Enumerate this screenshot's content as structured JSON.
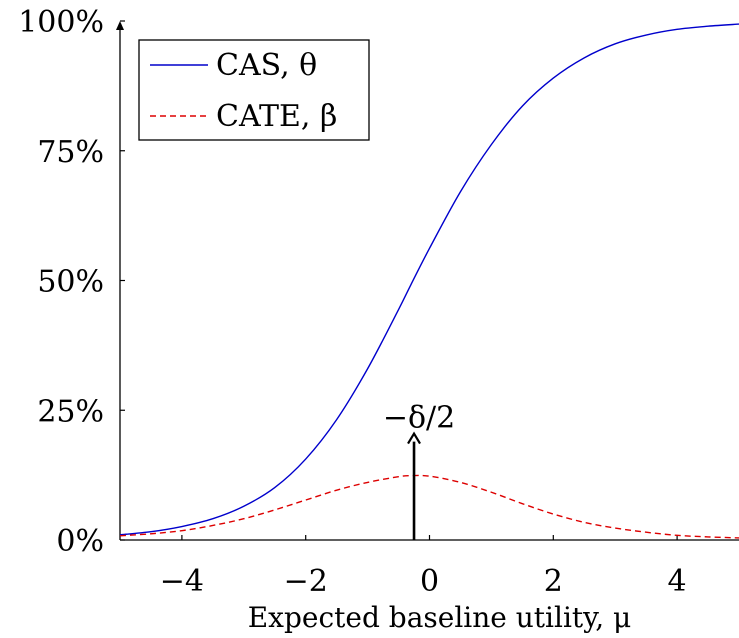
{
  "chart_data": {
    "type": "line",
    "xlabel": "Expected baseline utility, μ",
    "ylabel": "",
    "xlim": [
      -5,
      5
    ],
    "ylim": [
      0,
      100
    ],
    "x_ticks": [
      {
        "value": -4,
        "label": "−4"
      },
      {
        "value": -2,
        "label": "−2"
      },
      {
        "value": 0,
        "label": "0"
      },
      {
        "value": 2,
        "label": "2"
      },
      {
        "value": 4,
        "label": "4"
      }
    ],
    "y_ticks": [
      {
        "value": 0,
        "label": "0%"
      },
      {
        "value": 25,
        "label": "25%"
      },
      {
        "value": 50,
        "label": "50%"
      },
      {
        "value": 75,
        "label": "75%"
      },
      {
        "value": 100,
        "label": "100%"
      }
    ],
    "grid": false,
    "legend_position": "top-left",
    "series": [
      {
        "name": "CAS, θ",
        "color": "#0000cc",
        "style": "solid",
        "x": [
          -5,
          -4.5,
          -4,
          -3.5,
          -3,
          -2.5,
          -2,
          -1.5,
          -1,
          -0.5,
          -0.3,
          0,
          0.5,
          1,
          1.5,
          2,
          2.5,
          3,
          3.5,
          4,
          4.5,
          5
        ],
        "y": [
          1.0,
          1.6,
          2.6,
          4.1,
          6.5,
          10.1,
          15.6,
          23.2,
          33.0,
          44.4,
          49.2,
          56.2,
          67.1,
          76.2,
          83.6,
          89.0,
          92.9,
          95.6,
          97.3,
          98.4,
          99.0,
          99.4
        ]
      },
      {
        "name": "CATE, β",
        "color": "#dd0000",
        "style": "dashed",
        "x": [
          -5,
          -4.5,
          -4,
          -3.5,
          -3,
          -2.5,
          -2,
          -1.5,
          -1,
          -0.5,
          -0.3,
          0,
          0.5,
          1,
          1.5,
          2,
          2.5,
          3,
          3.5,
          4,
          4.5,
          5
        ],
        "y": [
          0.8,
          1.2,
          1.8,
          2.8,
          4.1,
          5.8,
          7.7,
          9.6,
          11.1,
          12.2,
          12.4,
          12.3,
          11.1,
          9.2,
          7.0,
          5.0,
          3.4,
          2.3,
          1.5,
          0.9,
          0.6,
          0.4
        ]
      }
    ],
    "annotations": [
      {
        "text": "−δ/2",
        "x": -0.25,
        "y": 20.5,
        "arrow_from_y": 0
      }
    ]
  }
}
